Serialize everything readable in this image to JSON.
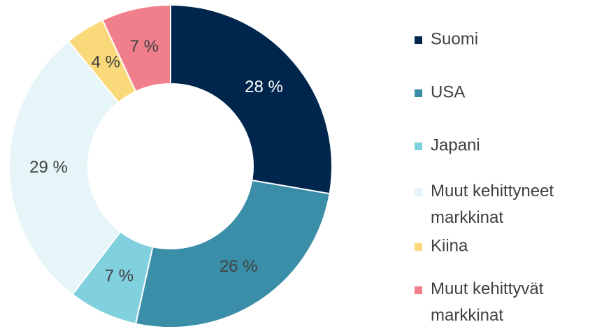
{
  "chart_data": {
    "type": "donut",
    "categories": [
      "Suomi",
      "USA",
      "Japani",
      "Muut kehittyneet markkinat",
      "Kiina",
      "Muut kehittyvät markkinat"
    ],
    "values": [
      28,
      26,
      7,
      29,
      4,
      7
    ],
    "value_labels": [
      "28 %",
      "26 %",
      "7 %",
      "29 %",
      "4 %",
      "7 %"
    ],
    "colors": [
      "#00264d",
      "#3a8ea8",
      "#80d0dd",
      "#e6f5f8",
      "#fad97a",
      "#f07f8b"
    ],
    "legend": "right"
  }
}
